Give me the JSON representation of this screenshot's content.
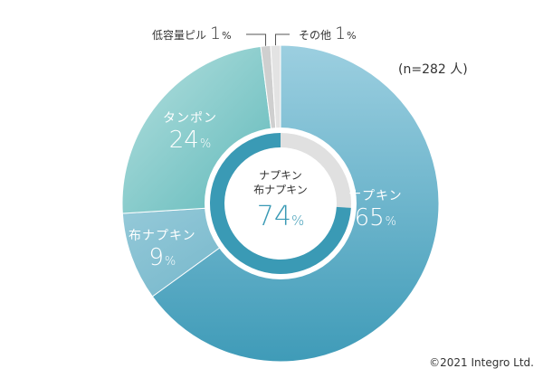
{
  "chart_data": {
    "type": "pie",
    "total_label": "(n=282 人)",
    "slices": [
      {
        "label": "ナプキン",
        "value": 65,
        "display": "65",
        "color": "#5eb0c8"
      },
      {
        "label": "布ナプキン",
        "value": 9,
        "display": "9",
        "color": "#86c4d4"
      },
      {
        "label": "タンポン",
        "value": 24,
        "display": "24",
        "color": "#8fcfcf"
      },
      {
        "label": "低容量ピル",
        "value": 1,
        "display": "1",
        "color": "#cfcfcf"
      },
      {
        "label": "その他",
        "value": 1,
        "display": "1",
        "color": "#e3e3e3"
      }
    ],
    "center": {
      "label_lines": [
        "ナプキン",
        "布ナプキン"
      ],
      "value": "74",
      "unit": "%",
      "ring_color": "#3a9ab5",
      "ring_value": 74
    },
    "unit": "%"
  },
  "copyright": "©2021 Integro Ltd."
}
